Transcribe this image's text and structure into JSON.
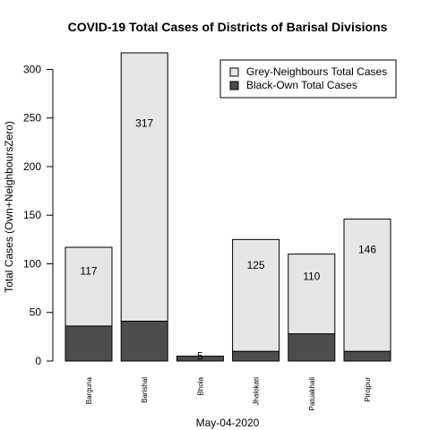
{
  "chart_data": {
    "type": "bar",
    "stacked": true,
    "title": "COVID-19 Total Cases of Districts of Barisal Divisions",
    "xlabel": "May-04-2020",
    "ylabel": "Total Cases (Own+NeighboursZero)",
    "ylim": [
      0,
      317
    ],
    "yticks": [
      0,
      50,
      100,
      150,
      200,
      250,
      300
    ],
    "grid": false,
    "legend_position": "top-right",
    "categories": [
      "Barguna",
      "Barishal",
      "Bhola",
      "Jhalokati",
      "Patuakhali",
      "Pirojpur"
    ],
    "totals": [
      117,
      317,
      5,
      125,
      110,
      146
    ],
    "series": [
      {
        "name": "Black-Own Total Cases",
        "color": "#4d4d4d",
        "values": [
          36,
          41,
          5,
          10,
          28,
          10
        ]
      },
      {
        "name": "Grey-Neighbours Total Cases",
        "color": "#e6e6e6",
        "values": [
          81,
          276,
          0,
          115,
          82,
          136
        ]
      }
    ],
    "legend_order": [
      1,
      0
    ]
  }
}
